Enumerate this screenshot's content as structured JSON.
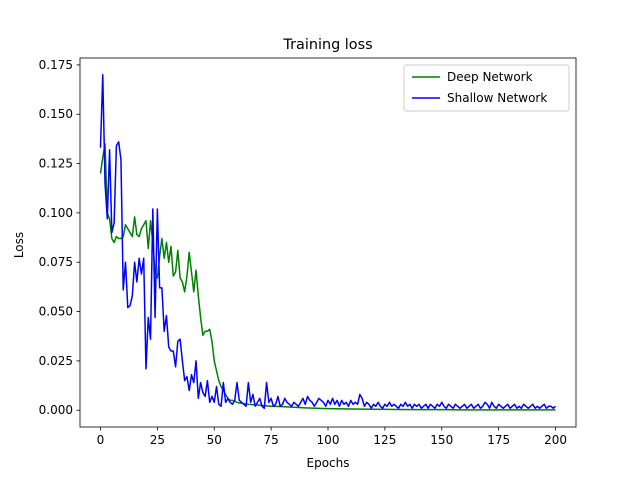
{
  "chart_data": {
    "type": "line",
    "title": "Training loss",
    "xlabel": "Epochs",
    "ylabel": "Loss",
    "xlim": [
      -9,
      209
    ],
    "ylim": [
      -0.0085,
      0.1785
    ],
    "xticks": [
      0,
      25,
      50,
      75,
      100,
      125,
      150,
      175,
      200
    ],
    "yticks": [
      0.0,
      0.025,
      0.05,
      0.075,
      0.1,
      0.125,
      0.15,
      0.175
    ],
    "xtick_labels": [
      "0",
      "25",
      "50",
      "75",
      "100",
      "125",
      "150",
      "175",
      "200"
    ],
    "ytick_labels": [
      "0.000",
      "0.025",
      "0.050",
      "0.075",
      "0.100",
      "0.125",
      "0.150",
      "0.175"
    ],
    "grid": false,
    "legend_position": "top-right",
    "series": [
      {
        "name": "Deep Network",
        "color": "#008000",
        "points": [
          [
            0,
            0.12
          ],
          [
            1,
            0.128
          ],
          [
            2,
            0.135
          ],
          [
            3,
            0.1
          ],
          [
            4,
            0.097
          ],
          [
            5,
            0.087
          ],
          [
            6,
            0.085
          ],
          [
            7,
            0.088
          ],
          [
            8,
            0.087
          ],
          [
            9,
            0.087
          ],
          [
            10,
            0.088
          ],
          [
            11,
            0.094
          ],
          [
            12,
            0.092
          ],
          [
            13,
            0.09
          ],
          [
            14,
            0.088
          ],
          [
            15,
            0.098
          ],
          [
            16,
            0.089
          ],
          [
            17,
            0.088
          ],
          [
            18,
            0.092
          ],
          [
            19,
            0.094
          ],
          [
            20,
            0.096
          ],
          [
            21,
            0.082
          ],
          [
            22,
            0.096
          ],
          [
            23,
            0.085
          ],
          [
            24,
            0.07
          ],
          [
            25,
            0.067
          ],
          [
            26,
            0.078
          ],
          [
            27,
            0.087
          ],
          [
            28,
            0.077
          ],
          [
            29,
            0.085
          ],
          [
            30,
            0.075
          ],
          [
            31,
            0.083
          ],
          [
            32,
            0.068
          ],
          [
            33,
            0.07
          ],
          [
            34,
            0.081
          ],
          [
            35,
            0.067
          ],
          [
            36,
            0.065
          ],
          [
            37,
            0.06
          ],
          [
            38,
            0.068
          ],
          [
            39,
            0.08
          ],
          [
            40,
            0.07
          ],
          [
            41,
            0.06
          ],
          [
            42,
            0.071
          ],
          [
            43,
            0.058
          ],
          [
            44,
            0.047
          ],
          [
            45,
            0.038
          ],
          [
            46,
            0.04
          ],
          [
            47,
            0.04
          ],
          [
            48,
            0.041
          ],
          [
            49,
            0.035
          ],
          [
            50,
            0.025
          ],
          [
            51,
            0.02
          ],
          [
            52,
            0.015
          ],
          [
            53,
            0.012
          ],
          [
            54,
            0.01
          ],
          [
            55,
            0.008
          ],
          [
            56,
            0.006
          ],
          [
            57,
            0.005
          ],
          [
            58,
            0.005
          ],
          [
            60,
            0.004
          ],
          [
            62,
            0.0035
          ],
          [
            65,
            0.003
          ],
          [
            70,
            0.0025
          ],
          [
            75,
            0.002
          ],
          [
            80,
            0.0018
          ],
          [
            90,
            0.0012
          ],
          [
            100,
            0.0008
          ],
          [
            110,
            0.0006
          ],
          [
            120,
            0.0005
          ],
          [
            130,
            0.0004
          ],
          [
            140,
            0.0003
          ],
          [
            150,
            0.0003
          ],
          [
            160,
            0.0002
          ],
          [
            170,
            0.0002
          ],
          [
            180,
            0.0002
          ],
          [
            190,
            0.0002
          ],
          [
            200,
            0.0002
          ]
        ]
      },
      {
        "name": "Shallow Network",
        "color": "#0000ff",
        "points": [
          [
            0,
            0.133
          ],
          [
            1,
            0.17
          ],
          [
            2,
            0.115
          ],
          [
            3,
            0.097
          ],
          [
            4,
            0.132
          ],
          [
            5,
            0.09
          ],
          [
            6,
            0.095
          ],
          [
            7,
            0.134
          ],
          [
            8,
            0.136
          ],
          [
            9,
            0.127
          ],
          [
            10,
            0.061
          ],
          [
            11,
            0.075
          ],
          [
            12,
            0.052
          ],
          [
            13,
            0.053
          ],
          [
            14,
            0.058
          ],
          [
            15,
            0.075
          ],
          [
            16,
            0.065
          ],
          [
            17,
            0.077
          ],
          [
            18,
            0.069
          ],
          [
            19,
            0.077
          ],
          [
            20,
            0.021
          ],
          [
            21,
            0.047
          ],
          [
            22,
            0.036
          ],
          [
            23,
            0.102
          ],
          [
            24,
            0.047
          ],
          [
            25,
            0.102
          ],
          [
            26,
            0.062
          ],
          [
            27,
            0.062
          ],
          [
            28,
            0.04
          ],
          [
            29,
            0.048
          ],
          [
            30,
            0.032
          ],
          [
            31,
            0.03
          ],
          [
            32,
            0.03
          ],
          [
            33,
            0.022
          ],
          [
            34,
            0.035
          ],
          [
            35,
            0.036
          ],
          [
            36,
            0.025
          ],
          [
            37,
            0.015
          ],
          [
            38,
            0.017
          ],
          [
            39,
            0.01
          ],
          [
            40,
            0.018
          ],
          [
            41,
            0.014
          ],
          [
            42,
            0.025
          ],
          [
            43,
            0.006
          ],
          [
            44,
            0.014
          ],
          [
            45,
            0.009
          ],
          [
            46,
            0.007
          ],
          [
            47,
            0.015
          ],
          [
            48,
            0.004
          ],
          [
            49,
            0.007
          ],
          [
            50,
            0.004
          ],
          [
            51,
            0.012
          ],
          [
            52,
            0.003
          ],
          [
            53,
            0.002
          ],
          [
            54,
            0.014
          ],
          [
            55,
            0.004
          ],
          [
            56,
            0.006
          ],
          [
            57,
            0.004
          ],
          [
            58,
            0.003
          ],
          [
            59,
            0.005
          ],
          [
            60,
            0.014
          ],
          [
            61,
            0.005
          ],
          [
            62,
            0.004
          ],
          [
            63,
            0.003
          ],
          [
            64,
            0.002
          ],
          [
            65,
            0.014
          ],
          [
            66,
            0.004
          ],
          [
            67,
            0.008
          ],
          [
            68,
            0.002
          ],
          [
            69,
            0.004
          ],
          [
            70,
            0.006
          ],
          [
            71,
            0.002
          ],
          [
            72,
            0.001
          ],
          [
            73,
            0.014
          ],
          [
            74,
            0.004
          ],
          [
            75,
            0.006
          ],
          [
            76,
            0.002
          ],
          [
            77,
            0.003
          ],
          [
            78,
            0.007
          ],
          [
            79,
            0.002
          ],
          [
            80,
            0.003
          ],
          [
            81,
            0.006
          ],
          [
            82,
            0.004
          ],
          [
            83,
            0.003
          ],
          [
            84,
            0.002
          ],
          [
            85,
            0.004
          ],
          [
            86,
            0.003
          ],
          [
            87,
            0.002
          ],
          [
            88,
            0.004
          ],
          [
            89,
            0.006
          ],
          [
            90,
            0.003
          ],
          [
            91,
            0.007
          ],
          [
            92,
            0.005
          ],
          [
            93,
            0.004
          ],
          [
            94,
            0.002
          ],
          [
            95,
            0.004
          ],
          [
            96,
            0.006
          ],
          [
            97,
            0.005
          ],
          [
            98,
            0.004
          ],
          [
            99,
            0.002
          ],
          [
            100,
            0.005
          ],
          [
            101,
            0.003
          ],
          [
            102,
            0.006
          ],
          [
            103,
            0.003
          ],
          [
            104,
            0.005
          ],
          [
            105,
            0.002
          ],
          [
            106,
            0.005
          ],
          [
            107,
            0.003
          ],
          [
            108,
            0.004
          ],
          [
            109,
            0.002
          ],
          [
            110,
            0.005
          ],
          [
            111,
            0.003
          ],
          [
            112,
            0.004
          ],
          [
            113,
            0.003
          ],
          [
            114,
            0.008
          ],
          [
            115,
            0.006
          ],
          [
            116,
            0.002
          ],
          [
            117,
            0.004
          ],
          [
            118,
            0.003
          ],
          [
            119,
            0.001
          ],
          [
            120,
            0.003
          ],
          [
            121,
            0.002
          ],
          [
            122,
            0.004
          ],
          [
            123,
            0.002
          ],
          [
            124,
            0.001
          ],
          [
            125,
            0.003
          ],
          [
            126,
            0.002
          ],
          [
            127,
            0.004
          ],
          [
            128,
            0.002
          ],
          [
            129,
            0.003
          ],
          [
            130,
            0.002
          ],
          [
            131,
            0.001
          ],
          [
            132,
            0.003
          ],
          [
            133,
            0.002
          ],
          [
            134,
            0.004
          ],
          [
            135,
            0.002
          ],
          [
            136,
            0.003
          ],
          [
            137,
            0.001
          ],
          [
            138,
            0.003
          ],
          [
            139,
            0.002
          ],
          [
            140,
            0.003
          ],
          [
            141,
            0.001
          ],
          [
            142,
            0.002
          ],
          [
            143,
            0.003
          ],
          [
            144,
            0.001
          ],
          [
            145,
            0.003
          ],
          [
            146,
            0.002
          ],
          [
            147,
            0.001
          ],
          [
            148,
            0.003
          ],
          [
            149,
            0.002
          ],
          [
            150,
            0.004
          ],
          [
            151,
            0.002
          ],
          [
            152,
            0.001
          ],
          [
            153,
            0.003
          ],
          [
            154,
            0.002
          ],
          [
            155,
            0.001
          ],
          [
            156,
            0.003
          ],
          [
            157,
            0.002
          ],
          [
            158,
            0.001
          ],
          [
            159,
            0.002
          ],
          [
            160,
            0.003
          ],
          [
            161,
            0.001
          ],
          [
            162,
            0.002
          ],
          [
            163,
            0.003
          ],
          [
            164,
            0.001
          ],
          [
            165,
            0.002
          ],
          [
            166,
            0.003
          ],
          [
            167,
            0.001
          ],
          [
            168,
            0.002
          ],
          [
            169,
            0.004
          ],
          [
            170,
            0.003
          ],
          [
            171,
            0.001
          ],
          [
            172,
            0.004
          ],
          [
            173,
            0.002
          ],
          [
            174,
            0.001
          ],
          [
            175,
            0.003
          ],
          [
            176,
            0.002
          ],
          [
            177,
            0.001
          ],
          [
            178,
            0.002
          ],
          [
            179,
            0.003
          ],
          [
            180,
            0.001
          ],
          [
            181,
            0.002
          ],
          [
            182,
            0.003
          ],
          [
            183,
            0.001
          ],
          [
            184,
            0.002
          ],
          [
            185,
            0.001
          ],
          [
            186,
            0.003
          ],
          [
            187,
            0.002
          ],
          [
            188,
            0.001
          ],
          [
            189,
            0.002
          ],
          [
            190,
            0.003
          ],
          [
            191,
            0.001
          ],
          [
            192,
            0.002
          ],
          [
            193,
            0.001
          ],
          [
            194,
            0.002
          ],
          [
            195,
            0.003
          ],
          [
            196,
            0.001
          ],
          [
            197,
            0.002
          ],
          [
            198,
            0.002
          ],
          [
            199,
            0.001
          ],
          [
            200,
            0.002
          ]
        ]
      }
    ]
  }
}
